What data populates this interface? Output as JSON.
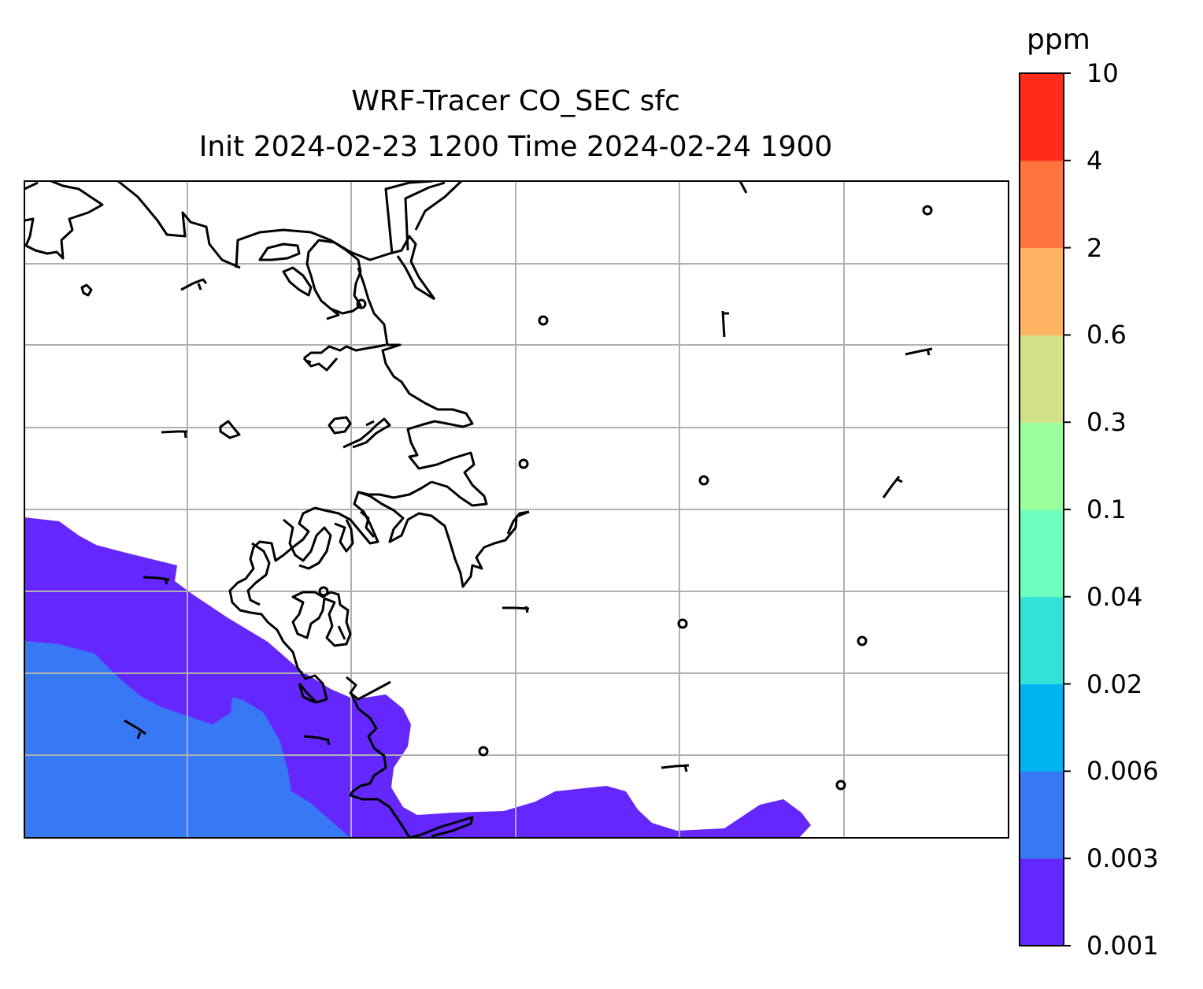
{
  "map": {
    "title_line1": "WRF-Tracer CO_SEC sfc",
    "title_line2": "Init 2024-02-23 1200 Time 2024-02-24 1900",
    "gridlines": true,
    "gridline_color": "#b0b0b0",
    "coastline_color": "#000000",
    "fields": [
      {
        "name": "0.001-0.003 ppm",
        "color": "#6428ff"
      },
      {
        "name": "0.003-0.006 ppm",
        "color": "#3778f5"
      }
    ]
  },
  "colorbar": {
    "unit_label": "ppm",
    "levels": [
      "0.001",
      "0.003",
      "0.006",
      "0.02",
      "0.04",
      "0.1",
      "0.3",
      "0.6",
      "2",
      "4",
      "10"
    ],
    "colors": [
      "#6428ff",
      "#3778f5",
      "#00b4f0",
      "#32e1d7",
      "#6effbe",
      "#9bff9b",
      "#d2e187",
      "#ffb464",
      "#ff733c",
      "#ff2d19"
    ]
  }
}
